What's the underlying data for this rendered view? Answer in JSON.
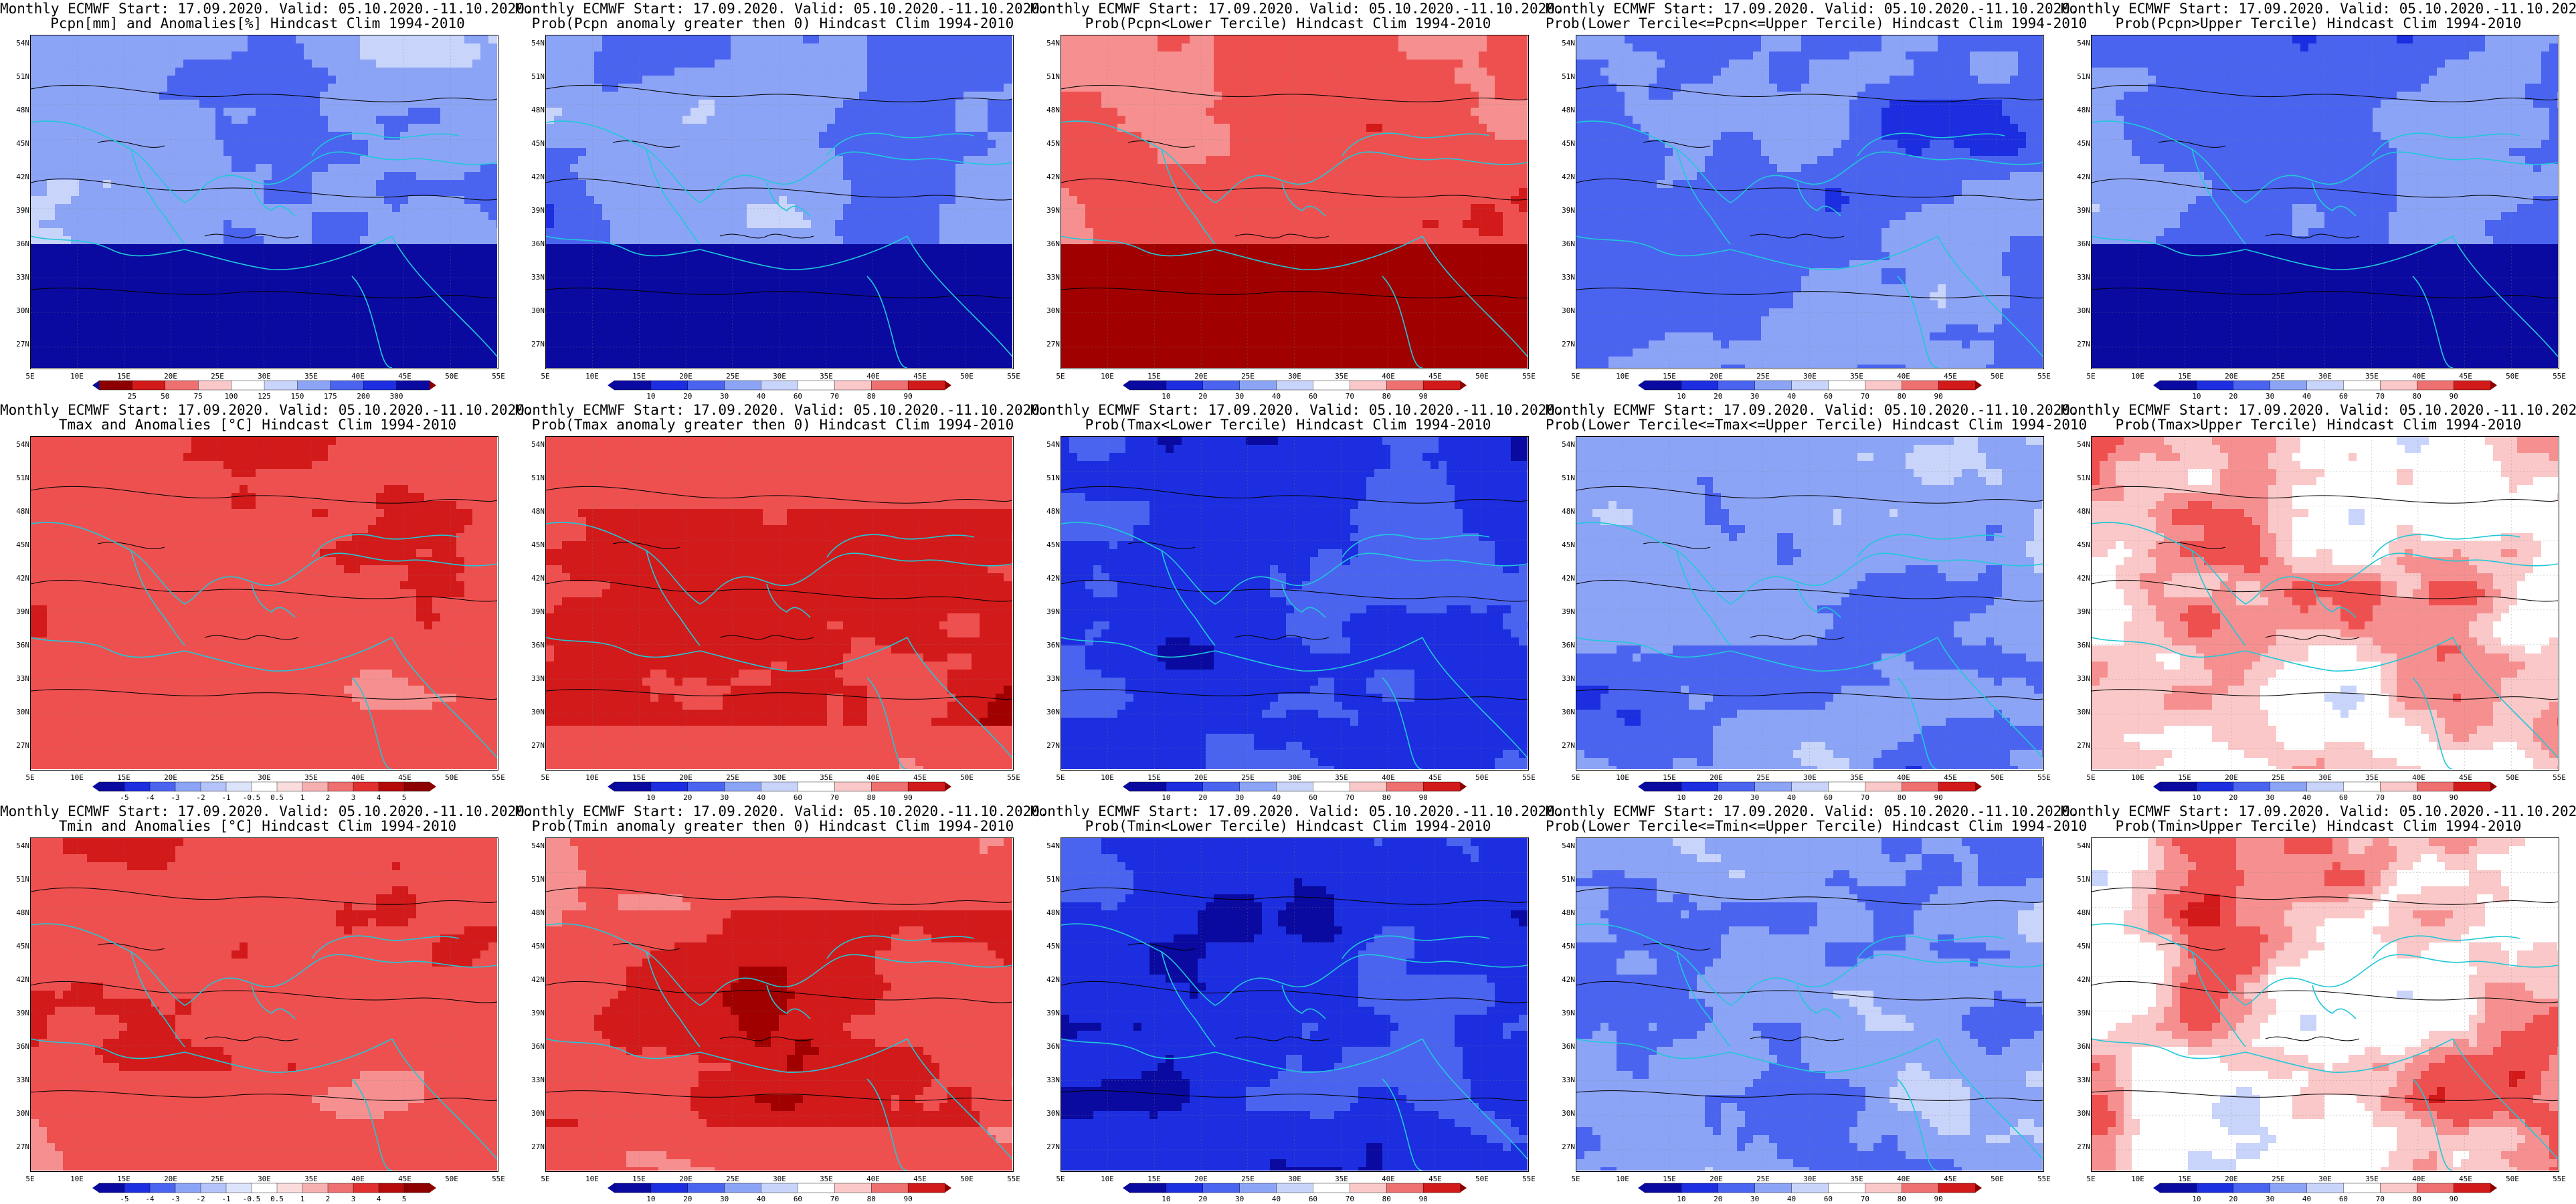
{
  "title_line1": "Monthly ECMWF Start: 17.09.2020. Valid: 05.10.2020.-11.10.2020.",
  "lat_labels": [
    "54N",
    "51N",
    "48N",
    "45N",
    "42N",
    "39N",
    "36N",
    "33N",
    "30N",
    "27N"
  ],
  "lon_labels": [
    "5E",
    "10E",
    "15E",
    "20E",
    "25E",
    "30E",
    "35E",
    "40E",
    "45E",
    "50E",
    "55E"
  ],
  "colors": {
    "blue_scale": [
      "#0a0aa0",
      "#1c2ee0",
      "#4a64f0",
      "#8ca4f6",
      "#c8d4fa",
      "#ffffff"
    ],
    "red_scale": [
      "#ffffff",
      "#fac8c8",
      "#f69090",
      "#ee5050",
      "#d21a1a",
      "#a00000"
    ],
    "coast": "#20c8d8",
    "contour": "#000000"
  },
  "rows": [
    {
      "variable": "Pcpn",
      "panels": [
        {
          "title2": "Pcpn[mm] and Anomalies[%] Hindcast Clim 1994-2010",
          "scheme": "pcpn_anom",
          "colorbar": [
            "25",
            "50",
            "75",
            "100",
            "125",
            "150",
            "175",
            "200",
            "300"
          ]
        },
        {
          "title2": "Prob(Pcpn anomaly greater then 0) Hindcast Clim 1994-2010",
          "scheme": "blue_south",
          "colorbar": [
            "10",
            "20",
            "30",
            "40",
            "60",
            "70",
            "80",
            "90"
          ]
        },
        {
          "title2": "Prob(Pcpn<Lower Tercile) Hindcast Clim 1994-2010",
          "scheme": "red_south",
          "colorbar": [
            "10",
            "20",
            "30",
            "40",
            "60",
            "70",
            "80",
            "90"
          ]
        },
        {
          "title2": "Prob(Lower Tercile<=Pcpn<=Upper Tercile) Hindcast Clim 1994-2010",
          "scheme": "blue_mid",
          "colorbar": [
            "10",
            "20",
            "30",
            "40",
            "60",
            "70",
            "80",
            "90"
          ]
        },
        {
          "title2": "Prob(Pcpn>Upper Tercile) Hindcast Clim 1994-2010",
          "scheme": "blue_south",
          "colorbar": [
            "10",
            "20",
            "30",
            "40",
            "60",
            "70",
            "80",
            "90"
          ]
        }
      ]
    },
    {
      "variable": "Tmax",
      "panels": [
        {
          "title2": "Tmax and Anomalies [°C] Hindcast Clim 1994-2010",
          "scheme": "light_red",
          "colorbar": [
            "-5",
            "-4",
            "-3",
            "-2",
            "-1",
            "-0.5",
            "0.5",
            "1",
            "2",
            "3",
            "4",
            "5"
          ]
        },
        {
          "title2": "Prob(Tmax anomaly greater then 0) Hindcast Clim 1994-2010",
          "scheme": "red_mid",
          "colorbar": [
            "10",
            "20",
            "30",
            "40",
            "60",
            "70",
            "80",
            "90"
          ]
        },
        {
          "title2": "Prob(Tmax<Lower Tercile) Hindcast Clim 1994-2010",
          "scheme": "blue_dark",
          "colorbar": [
            "10",
            "20",
            "30",
            "40",
            "60",
            "70",
            "80",
            "90"
          ]
        },
        {
          "title2": "Prob(Lower Tercile<=Tmax<=Upper Tercile) Hindcast Clim 1994-2010",
          "scheme": "blue_light",
          "colorbar": [
            "10",
            "20",
            "30",
            "40",
            "60",
            "70",
            "80",
            "90"
          ]
        },
        {
          "title2": "Prob(Tmax>Upper Tercile) Hindcast Clim 1994-2010",
          "scheme": "mixed",
          "colorbar": [
            "10",
            "20",
            "30",
            "40",
            "60",
            "70",
            "80",
            "90"
          ]
        }
      ]
    },
    {
      "variable": "Tmin",
      "panels": [
        {
          "title2": "Tmin and Anomalies [°C] Hindcast Clim 1994-2010",
          "scheme": "light_red",
          "colorbar": [
            "-5",
            "-4",
            "-3",
            "-2",
            "-1",
            "-0.5",
            "0.5",
            "1",
            "2",
            "3",
            "4",
            "5"
          ]
        },
        {
          "title2": "Prob(Tmin anomaly greater then 0) Hindcast Clim 1994-2010",
          "scheme": "red_mid",
          "colorbar": [
            "10",
            "20",
            "30",
            "40",
            "60",
            "70",
            "80",
            "90"
          ]
        },
        {
          "title2": "Prob(Tmin<Lower Tercile) Hindcast Clim 1994-2010",
          "scheme": "blue_dark",
          "colorbar": [
            "10",
            "20",
            "30",
            "40",
            "60",
            "70",
            "80",
            "90"
          ]
        },
        {
          "title2": "Prob(Lower Tercile<=Tmin<=Upper Tercile) Hindcast Clim 1994-2010",
          "scheme": "blue_light",
          "colorbar": [
            "10",
            "20",
            "30",
            "40",
            "60",
            "70",
            "80",
            "90"
          ]
        },
        {
          "title2": "Prob(Tmin>Upper Tercile) Hindcast Clim 1994-2010",
          "scheme": "mixed",
          "colorbar": [
            "10",
            "20",
            "30",
            "40",
            "60",
            "70",
            "80",
            "90"
          ]
        }
      ]
    }
  ]
}
